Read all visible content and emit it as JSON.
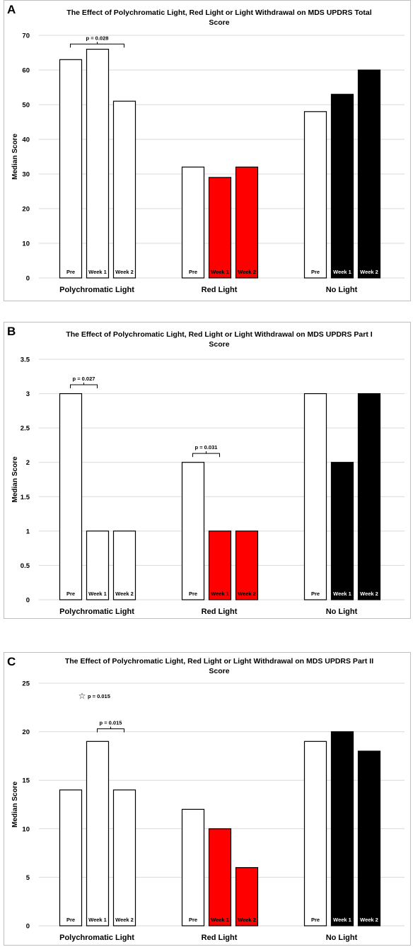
{
  "colors": {
    "pre": "#ffffff",
    "red": "#ff0000",
    "none": "#000000",
    "grid": "#d9d9d9",
    "axis_text": "#000000",
    "panel_border": "#bfbfbf"
  },
  "x_axis_labels": [
    "Pre",
    "Week 1",
    "Week 2"
  ],
  "chart_data": [
    {
      "type": "bar",
      "panel_label": "A",
      "title": "The Effect of Polychromatic Light, Red Light or Light Withdrawal on MDS UPDRS Total Score",
      "title_lines": [
        "The Effect of Polychromatic Light, Red Light or Light Withdrawal on MDS UPDRS Total",
        "Score"
      ],
      "ylabel": "Median Score",
      "ylim": [
        0,
        70
      ],
      "yticks": [
        0,
        10,
        20,
        30,
        40,
        50,
        60,
        70
      ],
      "ytick_labels": [
        "0",
        "10",
        "20",
        "30",
        "40",
        "50",
        "60",
        "70"
      ],
      "grid": true,
      "groups": [
        {
          "label": "Polychromatic Light",
          "bars": [
            {
              "label": "Pre",
              "value": 63,
              "fill": "pre"
            },
            {
              "label": "Week 1",
              "value": 66,
              "fill": "pre"
            },
            {
              "label": "Week 2",
              "value": 51,
              "fill": "pre"
            }
          ]
        },
        {
          "label": "Red Light",
          "bars": [
            {
              "label": "Pre",
              "value": 32,
              "fill": "pre"
            },
            {
              "label": "Week 1",
              "value": 29,
              "fill": "red"
            },
            {
              "label": "Week 2",
              "value": 32,
              "fill": "red"
            }
          ]
        },
        {
          "label": "No Light",
          "bars": [
            {
              "label": "Pre",
              "value": 48,
              "fill": "pre"
            },
            {
              "label": "Week 1",
              "value": 53,
              "fill": "none"
            },
            {
              "label": "Week 2",
              "value": 60,
              "fill": "none"
            }
          ]
        }
      ],
      "annotations": [
        {
          "text": "p = 0.028",
          "group": 0,
          "from": 0,
          "to": 2,
          "y": 67.5
        }
      ]
    },
    {
      "type": "bar",
      "panel_label": "B",
      "title": "The Effect of Polychromatic Light, Red Light or Light Withdrawal on MDS UPDRS Part I Score",
      "title_lines": [
        "The Effect of Polychromatic Light, Red Light or Light Withdrawal on MDS UPDRS Part I",
        "Score"
      ],
      "ylabel": "Median Score",
      "ylim": [
        0,
        3.5
      ],
      "yticks": [
        0,
        0.5,
        1,
        1.5,
        2,
        2.5,
        3,
        3.5
      ],
      "ytick_labels": [
        "0",
        "0.5",
        "1",
        "1.5",
        "2",
        "2.5",
        "3",
        "3.5"
      ],
      "grid": true,
      "groups": [
        {
          "label": "Polychromatic Light",
          "bars": [
            {
              "label": "Pre",
              "value": 3,
              "fill": "pre"
            },
            {
              "label": "Week 1",
              "value": 1,
              "fill": "pre"
            },
            {
              "label": "Week 2",
              "value": 1,
              "fill": "pre"
            }
          ]
        },
        {
          "label": "Red Light",
          "bars": [
            {
              "label": "Pre",
              "value": 2,
              "fill": "pre"
            },
            {
              "label": "Week 1",
              "value": 1,
              "fill": "red"
            },
            {
              "label": "Week 2",
              "value": 1,
              "fill": "red"
            }
          ]
        },
        {
          "label": "No Light",
          "bars": [
            {
              "label": "Pre",
              "value": 3,
              "fill": "pre"
            },
            {
              "label": "Week 1",
              "value": 2,
              "fill": "none"
            },
            {
              "label": "Week 2",
              "value": 3,
              "fill": "none"
            }
          ]
        }
      ],
      "annotations": [
        {
          "text": "p = 0.027",
          "group": 0,
          "from": 0,
          "to": 1,
          "y": 3.13
        },
        {
          "text": "p = 0.031",
          "group": 1,
          "from": 0,
          "to": 1,
          "y": 2.13
        }
      ]
    },
    {
      "type": "bar",
      "panel_label": "C",
      "title": "The Effect of Polychromatic Light, Red Light or Light Withdrawal on MDS UPDRS Part II Score",
      "title_lines": [
        "The Effect of Polychromatic Light, Red Light or Light Withdrawal on MDS UPDRS Part II",
        "Score"
      ],
      "ylabel": "Median Score",
      "ylim": [
        0,
        25
      ],
      "yticks": [
        0,
        5,
        10,
        15,
        20,
        25
      ],
      "ytick_labels": [
        "0",
        "5",
        "10",
        "15",
        "20",
        "25"
      ],
      "grid": true,
      "groups": [
        {
          "label": "Polychromatic Light",
          "bars": [
            {
              "label": "Pre",
              "value": 14,
              "fill": "pre"
            },
            {
              "label": "Week 1",
              "value": 19,
              "fill": "pre"
            },
            {
              "label": "Week 2",
              "value": 14,
              "fill": "pre"
            }
          ]
        },
        {
          "label": "Red Light",
          "bars": [
            {
              "label": "Pre",
              "value": 12,
              "fill": "pre"
            },
            {
              "label": "Week 1",
              "value": 10,
              "fill": "red"
            },
            {
              "label": "Week 2",
              "value": 6,
              "fill": "red"
            }
          ]
        },
        {
          "label": "No Light",
          "bars": [
            {
              "label": "Pre",
              "value": 19,
              "fill": "pre"
            },
            {
              "label": "Week 1",
              "value": 20,
              "fill": "none"
            },
            {
              "label": "Week 2",
              "value": 18,
              "fill": "none"
            }
          ]
        }
      ],
      "annotations": [
        {
          "text": "p = 0.015",
          "group": 0,
          "from": 1,
          "to": 2,
          "y": 20.3
        }
      ],
      "markers": [
        {
          "symbol": "☆",
          "text": "p = 0.015",
          "group": 0,
          "bar": 1,
          "y": 23.7
        }
      ]
    }
  ]
}
